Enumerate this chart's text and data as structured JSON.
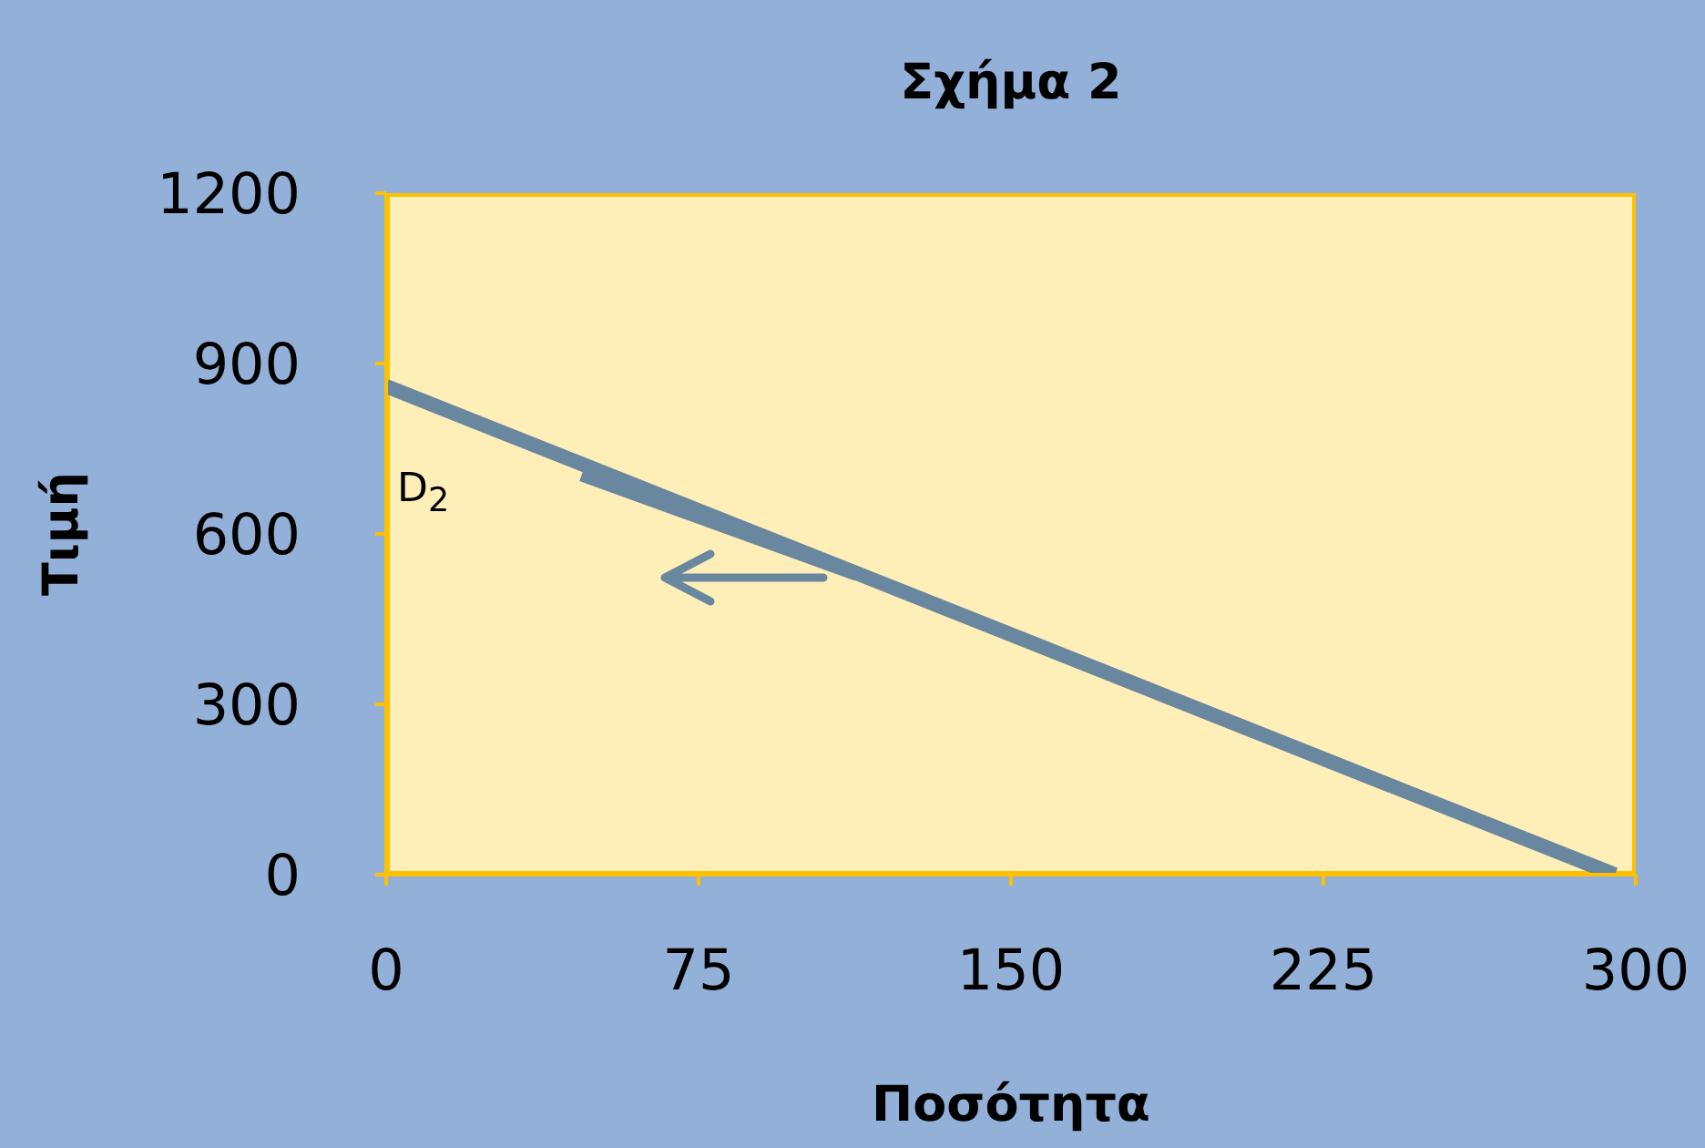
{
  "chart_data": {
    "type": "line",
    "title": "Σχήμα 2",
    "xlabel": "Ποσότητα",
    "ylabel": "Τιμή",
    "x": [
      0,
      295
    ],
    "series": [
      {
        "color": "#6a87a0",
        "values": [
          860,
          0
        ]
      },
      {
        "color": "#6a87a0",
        "x": [
          47,
          113
        ],
        "values": [
          705,
          530
        ]
      }
    ],
    "xlim": [
      0,
      300
    ],
    "xticks": [
      0,
      75,
      150,
      225,
      300
    ],
    "ylim": [
      0,
      1200
    ],
    "yticks": [
      0,
      300,
      600,
      900,
      1200
    ],
    "marker": "none",
    "line_style": "solid",
    "annotations": [
      "D$_{2}$"
    ]
  }
}
